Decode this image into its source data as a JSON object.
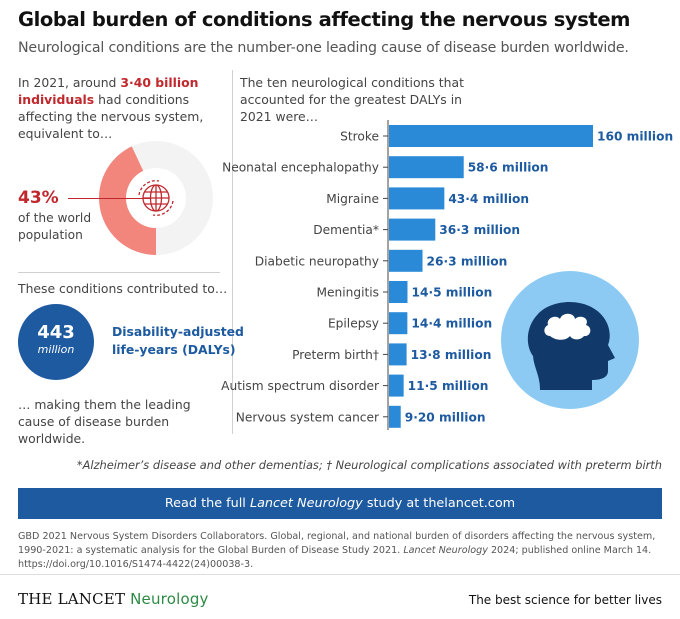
{
  "header": {
    "title": "Global burden of conditions affecting the nervous system",
    "subtitle": "Neurological conditions are the number-one leading cause of disease burden worldwide."
  },
  "left": {
    "intro_pre": "In 2021, around ",
    "intro_highlight": "3·40 billion individuals",
    "intro_post": " had conditions affecting the nervous system, equivalent to…",
    "percent": "43%",
    "percent_label_1": "of the world",
    "percent_label_2": "population",
    "percent_value": 43,
    "contributed": "These conditions contributed to…",
    "dalys_number": "443",
    "dalys_unit": "million",
    "dalys_label_1": "Disability-adjusted",
    "dalys_label_2": "life-years (DALYs)",
    "conclusion": "… making them the leading cause of disease burden worldwide."
  },
  "right": {
    "intro": "The ten neurological conditions that accounted for the greatest DALYs in 2021 were…"
  },
  "chart_data": {
    "type": "bar",
    "orientation": "horizontal",
    "title": "",
    "xlabel": "",
    "ylabel": "",
    "xlim": [
      0,
      160
    ],
    "unit": "million DALYs",
    "categories": [
      "Stroke",
      "Neonatal encephalopathy",
      "Migraine",
      "Dementia*",
      "Diabetic neuropathy",
      "Meningitis",
      "Epilepsy",
      "Preterm birth†",
      "Autism spectrum disorder",
      "Nervous system cancer"
    ],
    "values": [
      160,
      58.6,
      43.4,
      36.3,
      26.3,
      14.5,
      14.4,
      13.8,
      11.5,
      9.2
    ],
    "labels": [
      "160 million",
      "58·6 million",
      "43·4 million",
      "36·3 million",
      "26·3 million",
      "14·5 million",
      "14·4 million",
      "13·8 million",
      "11·5 million",
      "9·20 million"
    ]
  },
  "footnote": "*Alzheimer’s disease and other dementias; † Neurological complications associated with preterm birth",
  "banner": {
    "pre": "Read the full ",
    "journal": "Lancet Neurology",
    "post": " study at thelancet.com"
  },
  "citation": {
    "text1": "GBD 2021 Nervous System Disorders Collaborators. Global, regional, and national burden of disorders affecting the nervous system, 1990-2021: a systematic analysis for the Global Burden of Disease Study 2021. ",
    "journal": "Lancet Neurology",
    "text2": " 2024; published online March 14. https://doi.org/10.1016/S1474-4422(24)00038-3."
  },
  "footer": {
    "brand": "THE LANCET",
    "brand_sub": "Neurology",
    "tagline": "The best science for better lives"
  },
  "colors": {
    "bar": "#2a8ad8",
    "axis": "#444444",
    "donut_highlight": "#f2867c",
    "donut_rest": "#f3f3f3",
    "donut_center": "#ffffff",
    "globe": "#c0282d",
    "head_bg": "#8ccaf3",
    "head": "#113a6b",
    "dalys": "#1d5aa0",
    "accent_red": "#c0282d"
  }
}
